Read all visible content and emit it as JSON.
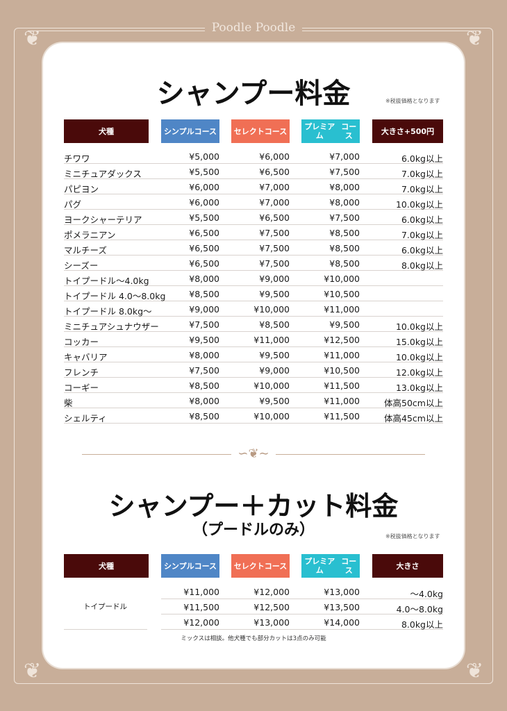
{
  "brand": "Poodle Poodle",
  "colors": {
    "background": "#c8ae99",
    "dark": "#4a0a0a",
    "simple": "#4f86c6",
    "select": "#f06f55",
    "premium": "#29bfd0"
  },
  "section1": {
    "title": "シャンプー料金",
    "note": "※税抜価格となります",
    "headers": {
      "breed": "犬種",
      "simple": [
        "シンプル",
        "コース"
      ],
      "select": [
        "セレクト",
        "コース"
      ],
      "premium": [
        "プレミアム",
        "コース"
      ],
      "size": "大きさ+500円"
    },
    "rows": [
      [
        "チワワ",
        "¥5,000",
        "¥6,000",
        "¥7,000",
        "6.0kg以上"
      ],
      [
        "ミニチュアダックス",
        "¥5,500",
        "¥6,500",
        "¥7,500",
        "7.0kg以上"
      ],
      [
        "パピヨン",
        "¥6,000",
        "¥7,000",
        "¥8,000",
        "7.0kg以上"
      ],
      [
        "パグ",
        "¥6,000",
        "¥7,000",
        "¥8,000",
        "10.0kg以上"
      ],
      [
        "ヨークシャーテリア",
        "¥5,500",
        "¥6,500",
        "¥7,500",
        "6.0kg以上"
      ],
      [
        "ポメラニアン",
        "¥6,500",
        "¥7,500",
        "¥8,500",
        "7.0kg以上"
      ],
      [
        "マルチーズ",
        "¥6,500",
        "¥7,500",
        "¥8,500",
        "6.0kg以上"
      ],
      [
        "シーズー",
        "¥6,500",
        "¥7,500",
        "¥8,500",
        "8.0kg以上"
      ],
      [
        "トイプードル～4.0kg",
        "¥8,000",
        "¥9,000",
        "¥10,000",
        ""
      ],
      [
        "トイプードル 4.0～8.0kg",
        "¥8,500",
        "¥9,500",
        "¥10,500",
        ""
      ],
      [
        "トイプードル 8.0kg～",
        "¥9,000",
        "¥10,000",
        "¥11,000",
        ""
      ],
      [
        "ミニチュアシュナウザー",
        "¥7,500",
        "¥8,500",
        "¥9,500",
        "10.0kg以上"
      ],
      [
        "コッカー",
        "¥9,500",
        "¥11,000",
        "¥12,500",
        "15.0kg以上"
      ],
      [
        "キャバリア",
        "¥8,000",
        "¥9,500",
        "¥11,000",
        "10.0kg以上"
      ],
      [
        "フレンチ",
        "¥7,500",
        "¥9,000",
        "¥10,500",
        "12.0kg以上"
      ],
      [
        "コーギー",
        "¥8,500",
        "¥10,000",
        "¥11,500",
        "13.0kg以上"
      ],
      [
        "柴",
        "¥8,000",
        "¥9,500",
        "¥11,000",
        "体高50cm以上"
      ],
      [
        "シェルティ",
        "¥8,500",
        "¥10,000",
        "¥11,500",
        "体高45cm以上"
      ]
    ]
  },
  "section2": {
    "title": "シャンプー＋カット料金",
    "subtitle": "（プードルのみ）",
    "note": "※税抜価格となります",
    "headers": {
      "breed": "犬種",
      "simple": [
        "シンプル",
        "コース"
      ],
      "select": [
        "セレクト",
        "コース"
      ],
      "premium": [
        "プレミアム",
        "コース"
      ],
      "size": "大きさ"
    },
    "breed": "トイプードル",
    "rows": [
      [
        "¥11,000",
        "¥12,000",
        "¥13,000",
        "～4.0kg"
      ],
      [
        "¥11,500",
        "¥12,500",
        "¥13,500",
        "4.0～8.0kg"
      ],
      [
        "¥12,000",
        "¥13,000",
        "¥14,000",
        "8.0kg以上"
      ]
    ],
    "footnote": "ミックスは相談。他犬種でも部分カットは3点のみ可能"
  }
}
